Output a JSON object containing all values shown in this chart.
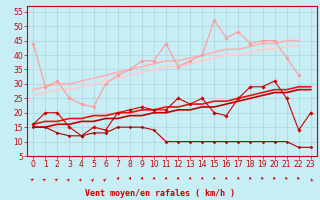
{
  "x": [
    0,
    1,
    2,
    3,
    4,
    5,
    6,
    7,
    8,
    9,
    10,
    11,
    12,
    13,
    14,
    15,
    16,
    17,
    18,
    19,
    20,
    21,
    22,
    23
  ],
  "series": [
    {
      "name": "line1_light_pink",
      "color": "#FF9999",
      "linewidth": 0.8,
      "marker": "D",
      "markersize": 1.8,
      "y": [
        44,
        29,
        31,
        25,
        23,
        22,
        30,
        33,
        35,
        38,
        38,
        44,
        36,
        38,
        40,
        52,
        46,
        48,
        44,
        45,
        45,
        39,
        33,
        null
      ]
    },
    {
      "name": "line2_light_pink_trend_upper",
      "color": "#FFB0B0",
      "linewidth": 1.2,
      "marker": null,
      "markersize": 0,
      "y": [
        28,
        29,
        30,
        30,
        31,
        32,
        33,
        34,
        35,
        36,
        37,
        38,
        38,
        39,
        40,
        41,
        42,
        42,
        43,
        44,
        44,
        45,
        45,
        null
      ]
    },
    {
      "name": "line3_light_pink_trend_lower",
      "color": "#FFCCCC",
      "linewidth": 1.2,
      "marker": null,
      "markersize": 0,
      "y": [
        26,
        27,
        28,
        28,
        29,
        30,
        31,
        32,
        33,
        34,
        35,
        36,
        36,
        37,
        38,
        39,
        40,
        40,
        41,
        42,
        42,
        43,
        43,
        null
      ]
    },
    {
      "name": "line4_dark_red_main",
      "color": "#CC0000",
      "linewidth": 0.8,
      "marker": "D",
      "markersize": 1.8,
      "y": [
        16,
        20,
        20,
        15,
        12,
        15,
        14,
        20,
        21,
        22,
        21,
        21,
        25,
        23,
        25,
        20,
        19,
        25,
        29,
        29,
        31,
        25,
        14,
        20
      ]
    },
    {
      "name": "line5_dark_red_trend_upper",
      "color": "#EE1111",
      "linewidth": 1.2,
      "marker": null,
      "markersize": 0,
      "y": [
        16,
        17,
        17,
        18,
        18,
        19,
        19,
        20,
        20,
        21,
        21,
        22,
        22,
        23,
        23,
        24,
        24,
        25,
        26,
        27,
        28,
        28,
        29,
        29
      ]
    },
    {
      "name": "line6_dark_red_trend_lower",
      "color": "#BB0000",
      "linewidth": 1.2,
      "marker": null,
      "markersize": 0,
      "y": [
        15,
        15,
        16,
        16,
        17,
        17,
        18,
        18,
        19,
        19,
        20,
        20,
        21,
        21,
        22,
        22,
        23,
        24,
        25,
        26,
        27,
        27,
        28,
        28
      ]
    },
    {
      "name": "line7_dark_red_low",
      "color": "#AA0000",
      "linewidth": 0.8,
      "marker": "D",
      "markersize": 1.5,
      "y": [
        15,
        15,
        13,
        12,
        12,
        13,
        13,
        15,
        15,
        15,
        14,
        10,
        10,
        10,
        10,
        10,
        10,
        10,
        10,
        10,
        10,
        10,
        8,
        8
      ]
    }
  ],
  "wind_arrow_angles": [
    45,
    40,
    40,
    35,
    35,
    30,
    30,
    25,
    20,
    15,
    10,
    10,
    5,
    5,
    5,
    0,
    0,
    355,
    350,
    345,
    340,
    340,
    335,
    330
  ],
  "xlim": [
    -0.5,
    23.5
  ],
  "ylim": [
    5,
    57
  ],
  "yticks": [
    5,
    10,
    15,
    20,
    25,
    30,
    35,
    40,
    45,
    50,
    55
  ],
  "xticks": [
    0,
    1,
    2,
    3,
    4,
    5,
    6,
    7,
    8,
    9,
    10,
    11,
    12,
    13,
    14,
    15,
    16,
    17,
    18,
    19,
    20,
    21,
    22,
    23
  ],
  "xlabel": "Vent moyen/en rafales ( km/h )",
  "bg_color": "#C8EEF5",
  "grid_color": "#A8CDD5",
  "axis_color": "#CC0000",
  "label_fontsize": 5.5,
  "xlabel_fontsize": 6.0
}
